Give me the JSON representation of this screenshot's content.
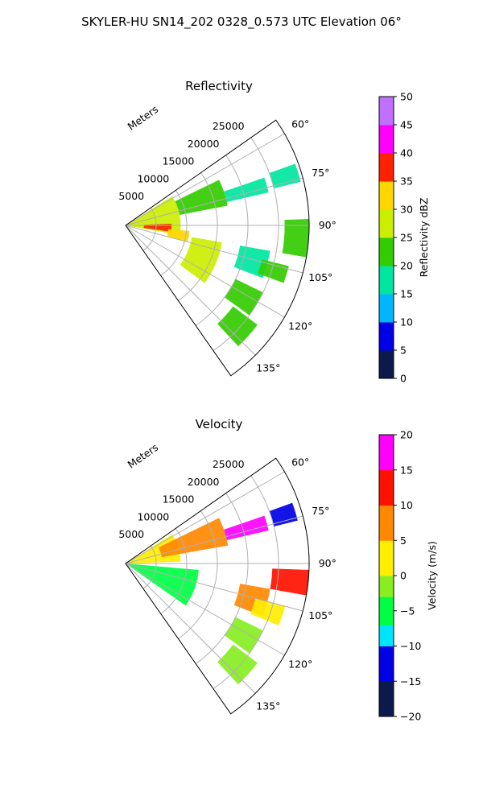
{
  "figure": {
    "suptitle": "SKYLER-HU  SN14_202  0328_0.573 UTC Elevation 06°"
  },
  "chart_data": [
    {
      "type": "heatmap",
      "title": "Reflectivity",
      "projection": "polar-sector",
      "theta_range_deg": [
        55,
        145
      ],
      "theta_ticks": [
        60,
        75,
        90,
        105,
        120,
        135
      ],
      "theta_tick_labels": [
        "60°",
        "75°",
        "90°",
        "105°",
        "120°",
        "135°"
      ],
      "r_range_m": [
        0,
        30000
      ],
      "r_ticks": [
        5000,
        10000,
        15000,
        20000,
        25000
      ],
      "r_tick_labels": [
        "5000",
        "10000",
        "15000",
        "20000",
        "25000"
      ],
      "r_label": "Meters",
      "grid": true,
      "colorbar": {
        "label": "Reflectivity dBZ",
        "min": 0,
        "max": 50,
        "ticks": [
          0,
          5,
          10,
          15,
          20,
          25,
          30,
          35,
          40,
          45,
          50
        ],
        "tick_labels": [
          "0",
          "5",
          "10",
          "15",
          "20",
          "25",
          "30",
          "35",
          "40",
          "45",
          "50"
        ]
      },
      "colors": {
        "0": "#0b1a4a",
        "5": "#0000e6",
        "10": "#00b7ff",
        "15": "#00e6a0",
        "20": "#33cc00",
        "25": "#ccee00",
        "30": "#ffd700",
        "35": "#ff2200",
        "40": "#ff00ff",
        "45": "#c070ff",
        "50": "#ffe6ff"
      },
      "echoes": [
        {
          "r": [
            0,
            9000
          ],
          "theta": [
            58,
            100
          ],
          "value": 28
        },
        {
          "r": [
            3000,
            7500
          ],
          "theta": [
            88,
            98
          ],
          "value": 38
        },
        {
          "r": [
            7000,
            10500
          ],
          "theta": [
            95,
            105
          ],
          "value": 32
        },
        {
          "r": [
            9000,
            17000
          ],
          "theta": [
            64,
            79
          ],
          "value": 22
        },
        {
          "r": [
            11000,
            16000
          ],
          "theta": [
            100,
            126
          ],
          "value": 25
        },
        {
          "r": [
            17000,
            24000
          ],
          "theta": [
            71,
            77
          ],
          "value": 18
        },
        {
          "r": [
            19000,
            24000
          ],
          "theta": [
            100,
            111
          ],
          "value": 16
        },
        {
          "r": [
            25000,
            29500
          ],
          "theta": [
            70,
            76
          ],
          "value": 19
        },
        {
          "r": [
            26000,
            30000
          ],
          "theta": [
            88,
            100
          ],
          "value": 23
        },
        {
          "r": [
            23000,
            27500
          ],
          "theta": [
            104,
            110
          ],
          "value": 21
        },
        {
          "r": [
            20000,
            25000
          ],
          "theta": [
            116,
            126
          ],
          "value": 20
        },
        {
          "r": [
            22000,
            27000
          ],
          "theta": [
            127,
            137
          ],
          "value": 22
        }
      ]
    },
    {
      "type": "heatmap",
      "title": "Velocity",
      "projection": "polar-sector",
      "theta_range_deg": [
        55,
        145
      ],
      "theta_ticks": [
        60,
        75,
        90,
        105,
        120,
        135
      ],
      "theta_tick_labels": [
        "60°",
        "75°",
        "90°",
        "105°",
        "120°",
        "135°"
      ],
      "r_range_m": [
        0,
        30000
      ],
      "r_ticks": [
        5000,
        10000,
        15000,
        20000,
        25000
      ],
      "r_tick_labels": [
        "5000",
        "10000",
        "15000",
        "20000",
        "25000"
      ],
      "r_label": "Meters",
      "grid": true,
      "colorbar": {
        "label": "Velocity (m/s)",
        "min": -20,
        "max": 20,
        "ticks": [
          -20,
          -15,
          -10,
          -5,
          0,
          5,
          10,
          15,
          20
        ],
        "tick_labels": [
          "−20",
          "−15",
          "−10",
          "−5",
          "0",
          "5",
          "10",
          "15",
          "20"
        ]
      },
      "colors": {
        "-20": "#0b1a4a",
        "-15": "#0000e6",
        "-10": "#00e5ff",
        "-7": "#00ff44",
        "-3": "#88ee22",
        "0": "#ffee00",
        "5": "#ff8800",
        "10": "#ff1100",
        "15": "#ff00ff",
        "20": "#ffe6ff"
      },
      "echoes": [
        {
          "r": [
            0,
            9000
          ],
          "theta": [
            58,
            88
          ],
          "value": 2
        },
        {
          "r": [
            0,
            12000
          ],
          "theta": [
            95,
            125
          ],
          "value": -7
        },
        {
          "r": [
            6000,
            17000
          ],
          "theta": [
            64,
            80
          ],
          "value": 9
        },
        {
          "r": [
            17000,
            24000
          ],
          "theta": [
            71,
            77
          ],
          "value": 15
        },
        {
          "r": [
            19000,
            24000
          ],
          "theta": [
            100,
            111
          ],
          "value": 9
        },
        {
          "r": [
            22000,
            27000
          ],
          "theta": [
            105,
            112
          ],
          "value": 4
        },
        {
          "r": [
            24000,
            30000
          ],
          "theta": [
            92,
            100
          ],
          "value": 14
        },
        {
          "r": [
            25000,
            29000
          ],
          "theta": [
            70,
            76
          ],
          "value": -11
        },
        {
          "r": [
            20000,
            25000
          ],
          "theta": [
            116,
            126
          ],
          "value": -3
        },
        {
          "r": [
            22000,
            27000
          ],
          "theta": [
            127,
            137
          ],
          "value": -3
        }
      ]
    }
  ]
}
